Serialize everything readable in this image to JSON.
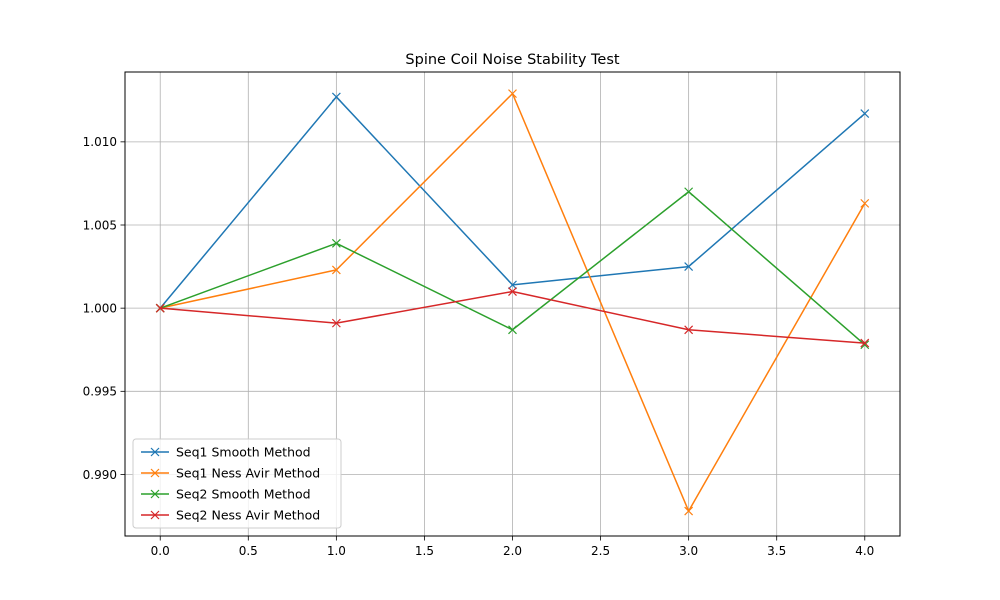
{
  "chart_data": {
    "type": "line",
    "title": "Spine Coil Noise Stability Test",
    "xlabel": "",
    "ylabel": "",
    "xlim": [
      -0.2,
      4.2
    ],
    "ylim": [
      0.9863,
      1.0142
    ],
    "xticks": [
      0.0,
      0.5,
      1.0,
      1.5,
      2.0,
      2.5,
      3.0,
      3.5,
      4.0
    ],
    "xtick_labels": [
      "0.0",
      "0.5",
      "1.0",
      "1.5",
      "2.0",
      "2.5",
      "3.0",
      "3.5",
      "4.0"
    ],
    "yticks": [
      0.99,
      0.995,
      1.0,
      1.005,
      1.01
    ],
    "ytick_labels": [
      "0.990",
      "0.995",
      "1.000",
      "1.005",
      "1.010"
    ],
    "grid": true,
    "legend_position": "lower-left",
    "marker": "x",
    "x": [
      0,
      1,
      2,
      3,
      4
    ],
    "series": [
      {
        "name": "Seq1 Smooth Method",
        "color": "#1f77b4",
        "values": [
          1.0,
          1.0127,
          1.0014,
          1.0025,
          1.0117
        ]
      },
      {
        "name": "Seq1 Ness Avir Method",
        "color": "#ff7f0e",
        "values": [
          1.0,
          1.0023,
          1.0129,
          0.9878,
          1.0063
        ]
      },
      {
        "name": "Seq2 Smooth Method",
        "color": "#2ca02c",
        "values": [
          1.0,
          1.0039,
          0.9987,
          1.007,
          0.9978
        ]
      },
      {
        "name": "Seq2 Ness Avir Method",
        "color": "#d62728",
        "values": [
          1.0,
          0.9991,
          1.001,
          0.9987,
          0.9979
        ]
      }
    ]
  }
}
